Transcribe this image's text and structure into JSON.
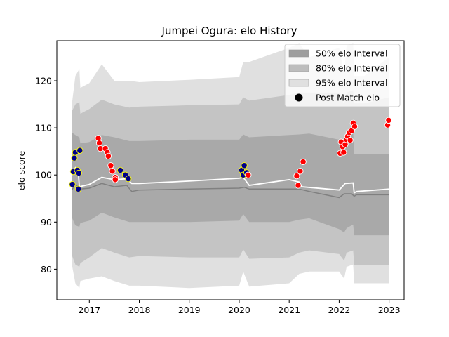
{
  "chart_data": {
    "type": "line",
    "title": "Jumpei Ogura: elo History",
    "xlabel": "",
    "ylabel": "elo score",
    "xlim": [
      2016.35,
      2023.3
    ],
    "ylim": [
      73.5,
      128.5
    ],
    "xticks": [
      2017,
      2018,
      2019,
      2020,
      2021,
      2022,
      2023
    ],
    "xtick_labels": [
      "2017",
      "2018",
      "2019",
      "2020",
      "2021",
      "2022",
      "2023"
    ],
    "yticks": [
      80,
      90,
      100,
      110,
      120
    ],
    "ytick_labels": [
      "80",
      "90",
      "100",
      "110",
      "120"
    ],
    "grid": false,
    "legend_position": "top-right",
    "legend": [
      {
        "label": "50% elo Interval",
        "kind": "band",
        "color": "#9e9e9e"
      },
      {
        "label": "80% elo Interval",
        "kind": "band",
        "color": "#bdbdbd"
      },
      {
        "label": "95% elo Interval",
        "kind": "band",
        "color": "#e0e0e0"
      },
      {
        "label": "Post Match elo",
        "kind": "marker",
        "color": "#000000"
      }
    ],
    "colors": {
      "band95": "#e0e0e0",
      "band80": "#c4c4c4",
      "band50": "#a9a9a9",
      "mean_line": "#ffffff",
      "median_line": "#808080",
      "win": "#ff0000",
      "loss": "#00008b",
      "loss_edge": "#ffff00",
      "win_edge": "#ffffff"
    },
    "band_x": [
      2016.65,
      2016.72,
      2016.8,
      2016.82,
      2017.0,
      2017.25,
      2017.5,
      2017.8,
      2018.0,
      2019.0,
      2020.0,
      2020.08,
      2020.2,
      2021.0,
      2021.2,
      2021.4,
      2022.0,
      2022.1,
      2022.15,
      2022.28,
      2022.3,
      2022.5,
      2023.0
    ],
    "band95_upper": [
      115,
      121,
      122.5,
      118.5,
      119.5,
      123.5,
      120,
      120,
      119.7,
      120.2,
      120.8,
      124,
      124,
      127,
      128,
      125,
      127,
      121.5,
      127.5,
      128,
      121,
      121,
      125
    ],
    "band95_lower": [
      81,
      77,
      76,
      77.5,
      78,
      78.5,
      77.5,
      76.5,
      76.5,
      76,
      76.5,
      79.5,
      76.3,
      77,
      79,
      79.5,
      79.5,
      78,
      80.5,
      81,
      77,
      77,
      77
    ],
    "band80_upper": [
      113.5,
      115,
      115.5,
      113,
      114,
      116,
      115,
      114.3,
      114.5,
      114.8,
      115,
      116.5,
      115.8,
      117,
      117.5,
      117.5,
      117.5,
      115,
      117.5,
      118,
      115.2,
      115.2,
      116.5
    ],
    "band80_lower": [
      83,
      81,
      80.5,
      81.3,
      82.5,
      84.5,
      83.5,
      82.5,
      82.8,
      82.5,
      82.5,
      84.2,
      82.2,
      82.5,
      83.5,
      84,
      83.2,
      81.8,
      83.5,
      84,
      80.8,
      80.8,
      80.8
    ],
    "band50_upper": [
      109,
      108.5,
      108,
      106.7,
      107,
      108.5,
      108,
      107.2,
      107.2,
      107.5,
      107.5,
      108.6,
      108,
      108.5,
      108.6,
      108.8,
      107.5,
      106,
      108,
      109,
      104.5,
      104.5,
      104.5
    ],
    "band50_lower": [
      91,
      89.3,
      89,
      89.8,
      90.3,
      92,
      91,
      90,
      90,
      90,
      90.3,
      91.7,
      90,
      90,
      90.5,
      90.8,
      88.5,
      87.8,
      88.7,
      89.5,
      87.2,
      87.2,
      87.2
    ],
    "series": [
      {
        "kind": "mean",
        "x": [
          2016.65,
          2016.72,
          2016.78,
          2016.8,
          2017.0,
          2017.25,
          2017.5,
          2017.75,
          2017.85,
          2018.0,
          2019.0,
          2020.0,
          2020.08,
          2020.2,
          2021.0,
          2021.2,
          2021.25,
          2022.0,
          2022.12,
          2022.28,
          2022.3,
          2022.35,
          2023.0
        ],
        "y": [
          100,
          101.5,
          100.5,
          97.5,
          98,
          99.5,
          99,
          99.2,
          98.2,
          98.2,
          98.7,
          99.3,
          99.5,
          97.8,
          99,
          98.5,
          97.5,
          96.8,
          98.2,
          98.3,
          96.2,
          96.5,
          97
        ]
      },
      {
        "kind": "median",
        "x": [
          2016.65,
          2016.72,
          2016.82,
          2017.0,
          2017.25,
          2017.5,
          2017.75,
          2017.85,
          2018.0,
          2019.0,
          2020.0,
          2020.1,
          2020.2,
          2021.0,
          2021.2,
          2021.4,
          2022.0,
          2022.1,
          2022.25,
          2022.3,
          2022.35,
          2023.0
        ],
        "y": [
          96.8,
          98,
          97,
          97.2,
          98.2,
          97.5,
          97.8,
          96.5,
          96.8,
          97,
          97.2,
          97.4,
          97,
          97,
          97,
          96.5,
          95.2,
          96,
          96,
          95.5,
          95.8,
          95.8
        ]
      }
    ],
    "post_match_elo": [
      {
        "x": 2016.66,
        "y": 98.0,
        "result": "loss"
      },
      {
        "x": 2016.68,
        "y": 100.7,
        "result": "loss"
      },
      {
        "x": 2016.7,
        "y": 103.6,
        "result": "loss"
      },
      {
        "x": 2016.72,
        "y": 104.8,
        "result": "loss"
      },
      {
        "x": 2016.76,
        "y": 101.0,
        "result": "loss"
      },
      {
        "x": 2016.78,
        "y": 97.0,
        "result": "loss"
      },
      {
        "x": 2016.79,
        "y": 100.4,
        "result": "loss"
      },
      {
        "x": 2016.81,
        "y": 105.2,
        "result": "loss"
      },
      {
        "x": 2017.18,
        "y": 107.8,
        "result": "win"
      },
      {
        "x": 2017.2,
        "y": 106.8,
        "result": "win"
      },
      {
        "x": 2017.22,
        "y": 105.6,
        "result": "win"
      },
      {
        "x": 2017.32,
        "y": 105.6,
        "result": "win"
      },
      {
        "x": 2017.36,
        "y": 104.8,
        "result": "win"
      },
      {
        "x": 2017.38,
        "y": 104.0,
        "result": "win"
      },
      {
        "x": 2017.43,
        "y": 102.0,
        "result": "win"
      },
      {
        "x": 2017.46,
        "y": 100.8,
        "result": "win"
      },
      {
        "x": 2017.52,
        "y": 99.5,
        "result": "win"
      },
      {
        "x": 2017.52,
        "y": 99.0,
        "result": "win"
      },
      {
        "x": 2017.62,
        "y": 101.0,
        "result": "loss"
      },
      {
        "x": 2017.72,
        "y": 100.0,
        "result": "loss"
      },
      {
        "x": 2017.78,
        "y": 99.2,
        "result": "loss"
      },
      {
        "x": 2020.05,
        "y": 101.0,
        "result": "loss"
      },
      {
        "x": 2020.08,
        "y": 100.0,
        "result": "loss"
      },
      {
        "x": 2020.1,
        "y": 102.0,
        "result": "loss"
      },
      {
        "x": 2020.15,
        "y": 100.5,
        "result": "loss"
      },
      {
        "x": 2020.18,
        "y": 100.0,
        "result": "win"
      },
      {
        "x": 2021.15,
        "y": 99.8,
        "result": "win"
      },
      {
        "x": 2021.18,
        "y": 97.8,
        "result": "win"
      },
      {
        "x": 2021.22,
        "y": 100.8,
        "result": "win"
      },
      {
        "x": 2021.28,
        "y": 102.8,
        "result": "win"
      },
      {
        "x": 2022.02,
        "y": 104.6,
        "result": "win"
      },
      {
        "x": 2022.04,
        "y": 107.0,
        "result": "win"
      },
      {
        "x": 2022.07,
        "y": 106.0,
        "result": "win"
      },
      {
        "x": 2022.09,
        "y": 104.8,
        "result": "win"
      },
      {
        "x": 2022.12,
        "y": 106.5,
        "result": "win"
      },
      {
        "x": 2022.15,
        "y": 107.5,
        "result": "win"
      },
      {
        "x": 2022.17,
        "y": 108.2,
        "result": "win"
      },
      {
        "x": 2022.2,
        "y": 109.0,
        "result": "win"
      },
      {
        "x": 2022.22,
        "y": 107.4,
        "result": "win"
      },
      {
        "x": 2022.25,
        "y": 109.4,
        "result": "win"
      },
      {
        "x": 2022.28,
        "y": 111.0,
        "result": "win"
      },
      {
        "x": 2022.31,
        "y": 110.3,
        "result": "win"
      },
      {
        "x": 2022.97,
        "y": 110.6,
        "result": "win"
      },
      {
        "x": 2022.99,
        "y": 111.6,
        "result": "win"
      }
    ]
  }
}
